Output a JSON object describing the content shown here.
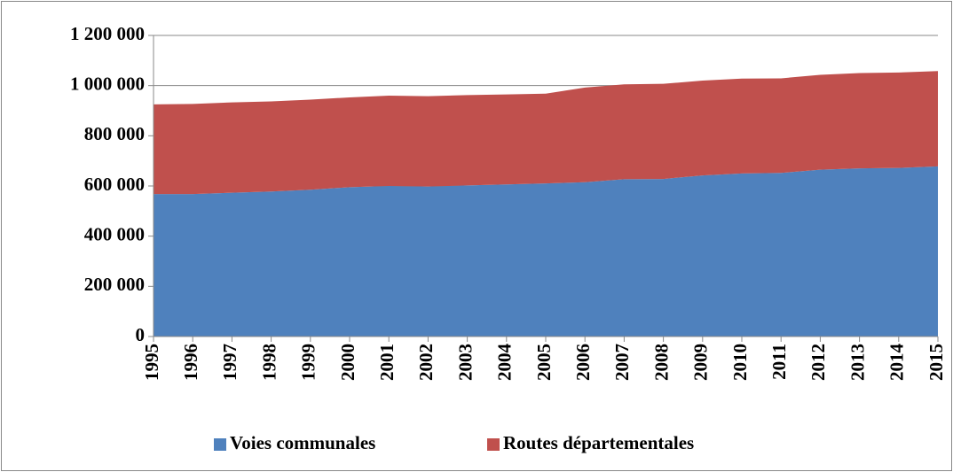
{
  "chart_data": {
    "type": "area",
    "stacked": true,
    "categories": [
      "1995",
      "1996",
      "1997",
      "1998",
      "1999",
      "2000",
      "2001",
      "2002",
      "2003",
      "2004",
      "2005",
      "2006",
      "2007",
      "2008",
      "2009",
      "2010",
      "2011",
      "2012",
      "2013",
      "2014",
      "2015"
    ],
    "series": [
      {
        "name": "Voies communales",
        "color": "#4f81bd",
        "values": [
          568000,
          568000,
          573000,
          578000,
          585000,
          595000,
          600000,
          598000,
          602000,
          606000,
          610000,
          615000,
          627000,
          628000,
          642000,
          650000,
          652000,
          665000,
          670000,
          672000,
          678000
        ]
      },
      {
        "name": "Routes départementales",
        "color": "#c0504d",
        "values": [
          357000,
          359000,
          360000,
          359000,
          359000,
          358000,
          360000,
          360000,
          360000,
          359000,
          358000,
          377000,
          378000,
          379000,
          378000,
          378000,
          377000,
          378000,
          380000,
          380000,
          380000
        ]
      }
    ],
    "ylim": [
      0,
      1200000
    ],
    "yticks": [
      0,
      {
        "value": 200000,
        "label": "200 000"
      },
      {
        "value": 400000,
        "label": "400 000"
      },
      {
        "value": 600000,
        "label": "600 000"
      },
      {
        "value": 800000,
        "label": "800 000"
      },
      {
        "value": 1000000,
        "label": "1 000 000"
      },
      {
        "value": 1200000,
        "label": "1 200 000"
      }
    ],
    "grid": true,
    "legend": "bottom"
  }
}
